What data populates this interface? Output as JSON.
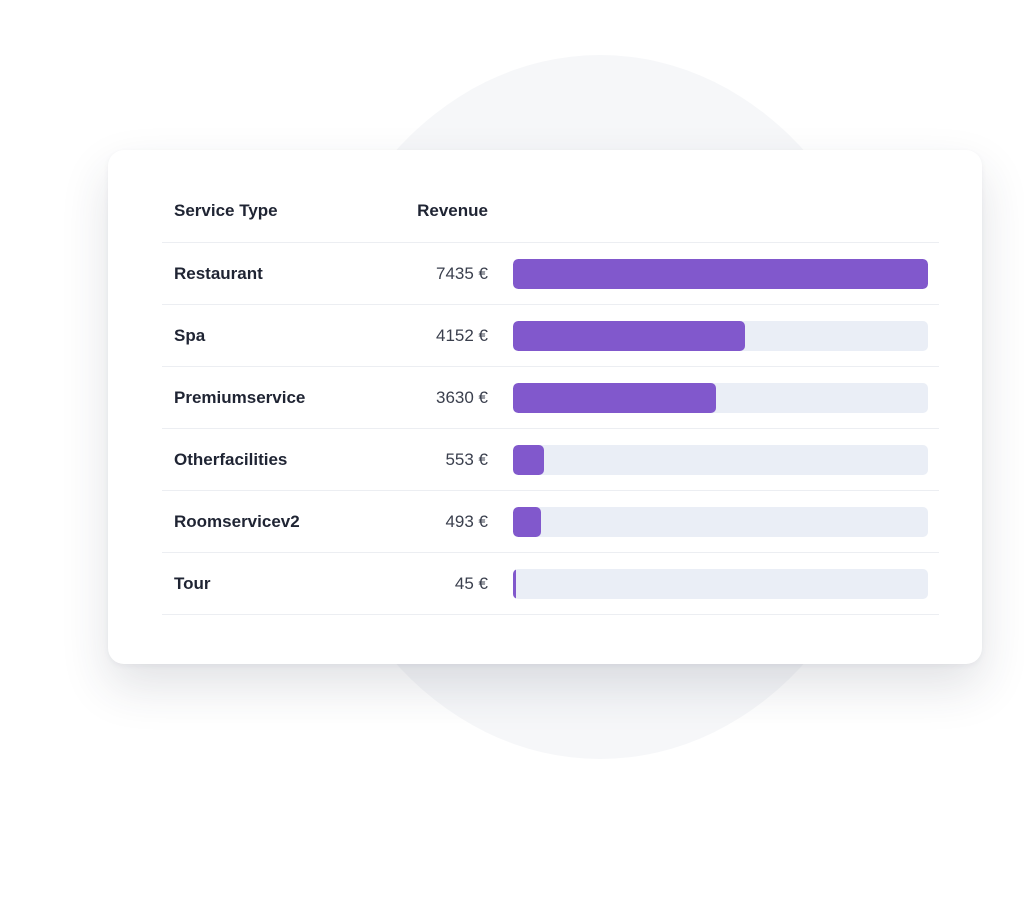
{
  "table": {
    "headers": {
      "service_type": "Service Type",
      "revenue": "Revenue"
    },
    "max_revenue": 7435,
    "rows": [
      {
        "service": "Restaurant",
        "revenue": 7435,
        "revenue_label": "7435 €"
      },
      {
        "service": "Spa",
        "revenue": 4152,
        "revenue_label": "4152 €"
      },
      {
        "service": "Premiumservice",
        "revenue": 3630,
        "revenue_label": "3630 €"
      },
      {
        "service": "Otherfacilities",
        "revenue": 553,
        "revenue_label": "553 €"
      },
      {
        "service": "Roomservicev2",
        "revenue": 493,
        "revenue_label": "493 €"
      },
      {
        "service": "Tour",
        "revenue": 45,
        "revenue_label": "45 €"
      }
    ]
  },
  "colors": {
    "bar_fill": "#8158cc",
    "bar_track": "#eaeef6",
    "background_circle": "#f6f7f9"
  }
}
